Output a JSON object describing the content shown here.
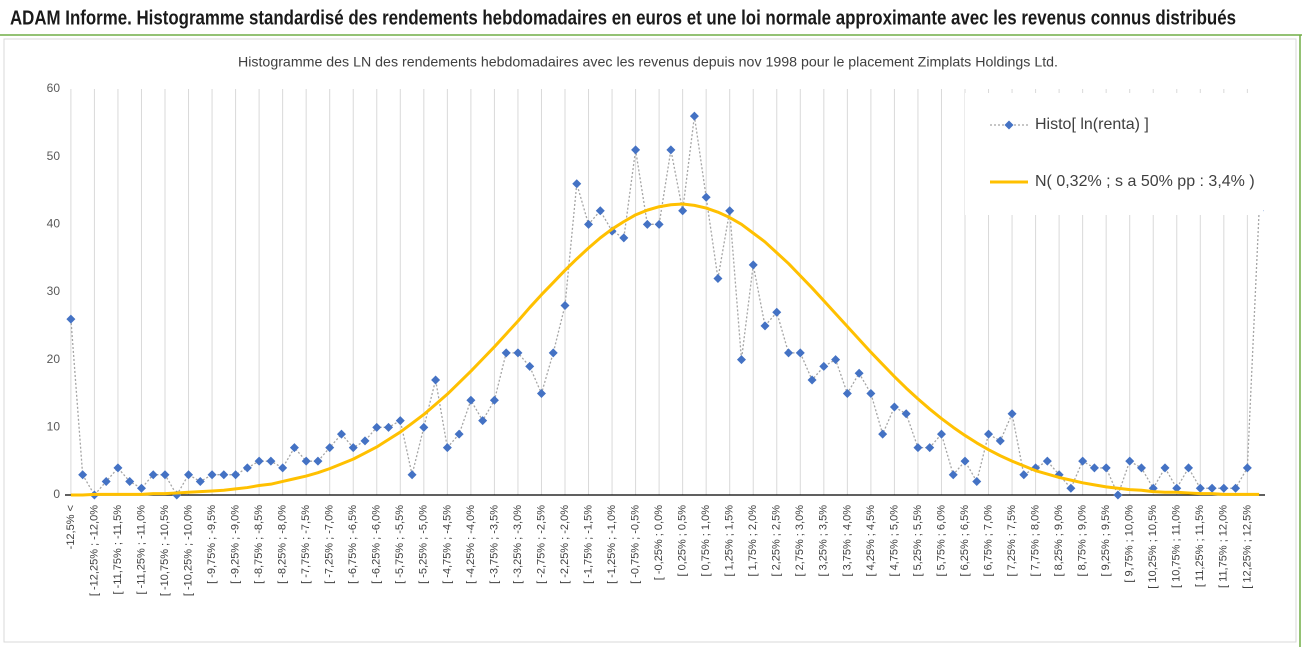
{
  "chart_data": {
    "type": "line",
    "title": "ADAM Informe. Histogramme standardisé des rendements hebdomadaires en euros et une loi normale approximante avec les revenus connus distribués",
    "subtitle": "Histogramme des LN des rendements hebdomadaires avec les revenus depuis nov 1998 pour le placement Zimplats Holdings Ltd.",
    "categories": [
      "-12,5% <",
      null,
      "[ -12,25% ; -12,0%",
      null,
      "[ -11,75% ; -11,5%",
      null,
      "[ -11,25% ; -11,0%",
      null,
      "[ -10,75% ; -10,5%",
      null,
      "[ -10,25% ; -10,0%",
      null,
      "[ -9,75% ; -9,5%",
      null,
      "[ -9,25% ; -9,0%",
      null,
      "[ -8,75% ; -8,5%",
      null,
      "[ -8,25% ; -8,0%",
      null,
      "[ -7,75% ; -7,5%",
      null,
      "[ -7,25% ; -7,0%",
      null,
      "[ -6,75% ; -6,5%",
      null,
      "[ -6,25% ; -6,0%",
      null,
      "[ -5,75% ; -5,5%",
      null,
      "[ -5,25% ; -5,0%",
      null,
      "[ -4,75% ; -4,5%",
      null,
      "[ -4,25% ; -4,0%",
      null,
      "[ -3,75% ; -3,5%",
      null,
      "[ -3,25% ; -3,0%",
      null,
      "[ -2,75% ; -2,5%",
      null,
      "[ -2,25% ; -2,0%",
      null,
      "[ -1,75% ; -1,5%",
      null,
      "[ -1,25% ; -1,0%",
      null,
      "[ -0,75% ; -0,5%",
      null,
      "[ -0,25% ; 0,0%",
      null,
      "[ 0,25% ; 0,5%",
      null,
      "[ 0,75% ; 1,0%",
      null,
      "[ 1,25% ; 1,5%",
      null,
      "[ 1,75% ; 2,0%",
      null,
      "[ 2,25% ; 2,5%",
      null,
      "[ 2,75% ; 3,0%",
      null,
      "[ 3,25% ; 3,5%",
      null,
      "[ 3,75% ; 4,0%",
      null,
      "[ 4,25% ; 4,5%",
      null,
      "[ 4,75% ; 5,0%",
      null,
      "[ 5,25% ; 5,5%",
      null,
      "[ 5,75% ; 6,0%",
      null,
      "[ 6,25% ; 6,5%",
      null,
      "[ 6,75% ; 7,0%",
      null,
      "[ 7,25% ; 7,5%",
      null,
      "[ 7,75% ; 8,0%",
      null,
      "[ 8,25% ; 9,0%",
      null,
      "[ 8,75% ; 9,0%",
      null,
      "[ 9,25% ; 9,5%",
      null,
      "[ 9,75% ; 10,0%",
      null,
      "[ 10,25% ; 10,5%",
      null,
      "[ 10,75% ; 11,0%",
      null,
      "[ 11,25% ; 11,5%",
      null,
      "[ 11,75% ; 12,0%",
      null,
      "[ 12,25% ; 12,5%",
      null
    ],
    "series": [
      {
        "name": "Histo[ ln(renta) ]",
        "color": "#4472c4",
        "line_color": "#a5a5a5",
        "marker": "diamond",
        "values": [
          26,
          3,
          0,
          2,
          4,
          2,
          1,
          3,
          3,
          0,
          3,
          2,
          3,
          3,
          3,
          4,
          5,
          5,
          4,
          7,
          5,
          5,
          7,
          9,
          7,
          8,
          10,
          10,
          11,
          3,
          10,
          17,
          7,
          9,
          14,
          11,
          14,
          21,
          21,
          19,
          15,
          21,
          28,
          46,
          40,
          42,
          39,
          38,
          51,
          40,
          40,
          51,
          42,
          56,
          44,
          32,
          42,
          20,
          34,
          25,
          27,
          21,
          21,
          17,
          19,
          20,
          15,
          18,
          15,
          9,
          13,
          12,
          7,
          7,
          9,
          3,
          5,
          2,
          9,
          8,
          12,
          3,
          4,
          5,
          3,
          1,
          5,
          4,
          4,
          0,
          5,
          4,
          1,
          4,
          1,
          4,
          1,
          1,
          1,
          1,
          4,
          42
        ]
      },
      {
        "name": "N( 0,32% ; s a 50% pp : 3,4% )",
        "color": "#ffc000",
        "values": [
          0.0,
          0.0,
          0.1,
          0.1,
          0.1,
          0.1,
          0.1,
          0.2,
          0.2,
          0.3,
          0.4,
          0.5,
          0.6,
          0.7,
          0.9,
          1.1,
          1.4,
          1.6,
          2.0,
          2.4,
          2.8,
          3.3,
          3.9,
          4.6,
          5.3,
          6.2,
          7.1,
          8.2,
          9.3,
          10.6,
          11.9,
          13.4,
          14.9,
          16.6,
          18.3,
          20.1,
          21.9,
          23.8,
          25.7,
          27.7,
          29.6,
          31.4,
          33.2,
          34.9,
          36.5,
          38.0,
          39.3,
          40.4,
          41.4,
          42.1,
          42.6,
          42.9,
          43.0,
          42.8,
          42.4,
          41.8,
          41.0,
          40.0,
          38.7,
          37.4,
          35.8,
          34.2,
          32.4,
          30.6,
          28.7,
          26.8,
          24.9,
          23.0,
          21.1,
          19.3,
          17.5,
          15.8,
          14.2,
          12.7,
          11.3,
          10.0,
          8.8,
          7.7,
          6.7,
          5.8,
          5.0,
          4.3,
          3.6,
          3.1,
          2.6,
          2.2,
          1.8,
          1.5,
          1.2,
          1.0,
          0.8,
          0.7,
          0.5,
          0.4,
          0.4,
          0.3,
          0.2,
          0.2,
          0.1,
          0.1,
          0.1,
          0.1
        ]
      }
    ],
    "ylim": [
      0,
      60
    ],
    "yticks": [
      0,
      10,
      20,
      30,
      40,
      50,
      60
    ],
    "grid": "x",
    "legend": "upper right"
  }
}
